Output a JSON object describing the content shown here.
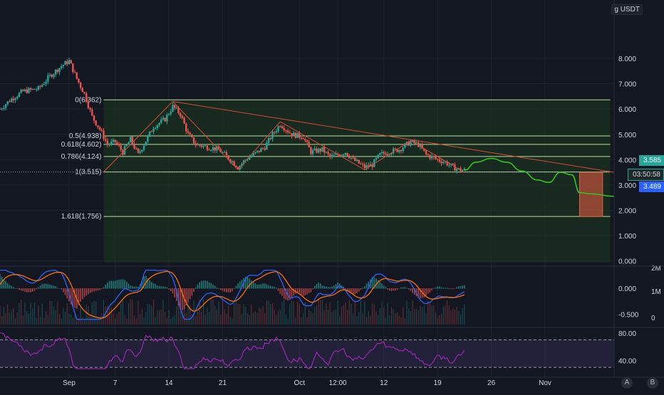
{
  "header": {
    "unit_prefix": "g",
    "quote": "USDT"
  },
  "colors": {
    "bg": "#131722",
    "up": "#26a69a",
    "down": "#ef5350",
    "grid": "#1f2430",
    "fib": "#b8e0a0",
    "fib_fill": "#1e3a1e",
    "trend": "#d84a35",
    "forecast": "#35c21f",
    "macd": "#2962ff",
    "signal": "#ff6d00",
    "rsi": "#9c27b0",
    "last_price": "#26a69a",
    "prev_price": "#2962ff"
  },
  "price_tags": {
    "last": "3.585",
    "countdown": "03:50:58",
    "prev": "3.489"
  },
  "buttons": {
    "auto": "A",
    "log": "B"
  },
  "chart_data": {
    "type": "candlestick",
    "title": "",
    "price_axis": {
      "ticks": [
        8.0,
        7.0,
        6.0,
        5.0,
        4.0,
        3.0,
        2.0,
        1.0,
        0.0
      ],
      "tick_labels": [
        "8.000",
        "7.000",
        "6.000",
        "5.000",
        "4.000",
        "3.000",
        "2.000",
        "1.000",
        "0.000"
      ],
      "ylim": [
        -0.15,
        8.9
      ]
    },
    "time_axis": {
      "labels": [
        "Sep",
        "7",
        "14",
        "21",
        "Oct",
        "12:00",
        "12",
        "19",
        "26",
        "Nov"
      ],
      "label_days": [
        0,
        6,
        13,
        20,
        30,
        35,
        41,
        48,
        55,
        62
      ],
      "xlim_days": [
        -9,
        71
      ]
    },
    "fibonacci": [
      {
        "label": "0(6.362)",
        "price": 6.362
      },
      {
        "label": "0.5(4.938)",
        "price": 4.938
      },
      {
        "label": "0.618(4.602)",
        "price": 4.602
      },
      {
        "label": "0.786(4.124)",
        "price": 4.124
      },
      {
        "label": "1(3.515)",
        "price": 3.515
      },
      {
        "label": "1.618(1.756)",
        "price": 1.756
      }
    ],
    "fib_range_days": [
      4.5,
      70.5
    ],
    "price_anchors": [
      [
        -9,
        6.0
      ],
      [
        -7.5,
        6.4
      ],
      [
        -6,
        6.7
      ],
      [
        -4,
        6.8
      ],
      [
        -2.5,
        7.3
      ],
      [
        -1,
        7.7
      ],
      [
        0,
        7.9
      ],
      [
        1,
        7.2
      ],
      [
        2,
        6.6
      ],
      [
        3,
        5.7
      ],
      [
        4,
        5.2
      ],
      [
        5,
        4.6
      ],
      [
        6,
        4.7
      ],
      [
        7,
        4.3
      ],
      [
        8,
        4.8
      ],
      [
        9,
        4.2
      ],
      [
        11,
        5.3
      ],
      [
        12.5,
        5.6
      ],
      [
        13.5,
        6.1
      ],
      [
        14.5,
        5.8
      ],
      [
        15.5,
        5.0
      ],
      [
        16.5,
        4.6
      ],
      [
        18,
        4.5
      ],
      [
        19.5,
        4.4
      ],
      [
        21,
        4.0
      ],
      [
        22,
        3.7
      ],
      [
        23,
        4.0
      ],
      [
        24,
        4.2
      ],
      [
        25.5,
        4.5
      ],
      [
        26.5,
        5.0
      ],
      [
        27.5,
        5.4
      ],
      [
        29,
        5.0
      ],
      [
        30.5,
        4.9
      ],
      [
        31.5,
        4.3
      ],
      [
        33,
        4.4
      ],
      [
        34,
        4.1
      ],
      [
        36,
        4.3
      ],
      [
        37,
        4.0
      ],
      [
        38.5,
        3.7
      ],
      [
        39.5,
        3.8
      ],
      [
        40.5,
        4.2
      ],
      [
        41.5,
        4.3
      ],
      [
        43,
        4.4
      ],
      [
        44.5,
        4.7
      ],
      [
        45.5,
        4.6
      ],
      [
        46.5,
        4.2
      ],
      [
        48,
        4.0
      ],
      [
        49,
        3.9
      ],
      [
        50,
        3.7
      ],
      [
        50.8,
        3.6
      ],
      [
        51.5,
        3.585
      ]
    ],
    "forecast": [
      [
        51.5,
        3.585
      ],
      [
        53,
        3.9
      ],
      [
        55,
        4.05
      ],
      [
        57,
        3.9
      ],
      [
        59,
        3.55
      ],
      [
        61,
        3.2
      ],
      [
        62.5,
        3.1
      ],
      [
        64,
        3.5
      ],
      [
        65.5,
        3.4
      ],
      [
        66.5,
        2.7
      ],
      [
        68,
        2.65
      ],
      [
        71,
        2.55
      ]
    ],
    "trend_lines": [
      {
        "from": [
          13.5,
          6.3
        ],
        "to": [
          71,
          3.5
        ]
      },
      {
        "from": [
          4.5,
          3.515
        ],
        "to": [
          13.5,
          6.3
        ]
      },
      {
        "from": [
          13.5,
          6.3
        ],
        "to": [
          22,
          3.6
        ]
      },
      {
        "from": [
          22,
          3.6
        ],
        "to": [
          27.5,
          5.5
        ]
      },
      {
        "from": [
          27.5,
          5.5
        ],
        "to": [
          38.5,
          3.6
        ]
      },
      {
        "from": [
          38.5,
          3.6
        ],
        "to": [
          44.5,
          4.75
        ]
      },
      {
        "from": [
          44.5,
          4.75
        ],
        "to": [
          51.5,
          3.5
        ]
      }
    ],
    "projection_box": {
      "from_day": 66.5,
      "to_day": 69.5,
      "top": 3.5,
      "bottom": 1.756
    },
    "macd": {
      "label_ticks": [
        0.0,
        -0.5
      ],
      "labels": [
        "0.000",
        "-0.500"
      ],
      "ylim": [
        -0.7,
        0.4
      ],
      "volume_labels": [
        "2M",
        "1M",
        "0"
      ]
    },
    "rsi": {
      "labels": [
        "80.00",
        "40.00"
      ],
      "ticks": [
        80,
        40
      ],
      "ylim": [
        26,
        86
      ],
      "bands": [
        70,
        30
      ]
    }
  }
}
